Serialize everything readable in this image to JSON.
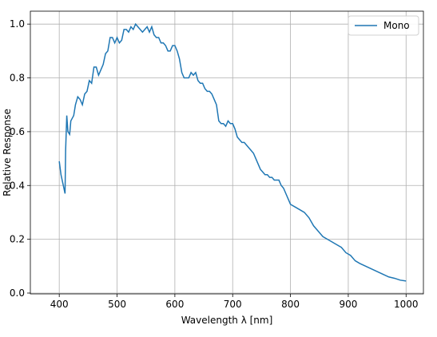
{
  "chart_data": {
    "type": "line",
    "xlabel": "Wavelength λ [nm]",
    "ylabel": "Relative Response",
    "x": [
      400,
      403,
      407,
      410,
      411,
      413,
      415,
      418,
      420,
      425,
      428,
      432,
      436,
      440,
      444,
      448,
      452,
      456,
      460,
      464,
      468,
      472,
      476,
      480,
      484,
      488,
      492,
      496,
      500,
      504,
      508,
      512,
      516,
      520,
      524,
      528,
      532,
      536,
      540,
      544,
      548,
      552,
      556,
      560,
      564,
      568,
      572,
      576,
      580,
      584,
      588,
      592,
      596,
      600,
      604,
      608,
      612,
      616,
      620,
      624,
      628,
      632,
      636,
      640,
      644,
      648,
      652,
      656,
      660,
      664,
      668,
      672,
      676,
      680,
      684,
      688,
      692,
      696,
      700,
      704,
      708,
      712,
      716,
      720,
      724,
      728,
      732,
      736,
      740,
      744,
      748,
      752,
      756,
      760,
      764,
      768,
      772,
      776,
      780,
      784,
      788,
      792,
      796,
      800,
      808,
      816,
      824,
      832,
      840,
      848,
      856,
      864,
      872,
      880,
      888,
      896,
      904,
      912,
      920,
      930,
      940,
      950,
      960,
      970,
      980,
      990,
      1000
    ],
    "series": [
      {
        "name": "Mono",
        "color": "#1f77b4",
        "values": [
          0.49,
          0.44,
          0.4,
          0.37,
          0.53,
          0.66,
          0.6,
          0.59,
          0.64,
          0.66,
          0.7,
          0.73,
          0.72,
          0.7,
          0.74,
          0.75,
          0.79,
          0.78,
          0.84,
          0.84,
          0.81,
          0.83,
          0.85,
          0.89,
          0.9,
          0.95,
          0.95,
          0.93,
          0.95,
          0.93,
          0.94,
          0.98,
          0.98,
          0.97,
          0.99,
          0.98,
          1.0,
          0.99,
          0.98,
          0.97,
          0.98,
          0.99,
          0.97,
          0.99,
          0.96,
          0.95,
          0.95,
          0.93,
          0.93,
          0.92,
          0.9,
          0.9,
          0.92,
          0.92,
          0.9,
          0.87,
          0.82,
          0.8,
          0.8,
          0.8,
          0.82,
          0.81,
          0.82,
          0.79,
          0.78,
          0.78,
          0.76,
          0.75,
          0.75,
          0.74,
          0.72,
          0.7,
          0.64,
          0.63,
          0.63,
          0.62,
          0.64,
          0.63,
          0.63,
          0.61,
          0.58,
          0.57,
          0.56,
          0.56,
          0.55,
          0.54,
          0.53,
          0.52,
          0.5,
          0.48,
          0.46,
          0.45,
          0.44,
          0.44,
          0.43,
          0.43,
          0.42,
          0.42,
          0.42,
          0.4,
          0.39,
          0.37,
          0.35,
          0.33,
          0.32,
          0.31,
          0.3,
          0.28,
          0.25,
          0.23,
          0.21,
          0.2,
          0.19,
          0.18,
          0.17,
          0.15,
          0.14,
          0.12,
          0.11,
          0.1,
          0.09,
          0.08,
          0.07,
          0.06,
          0.055,
          0.048,
          0.045
        ]
      }
    ],
    "xlim": [
      350,
      1030
    ],
    "ylim": [
      -0.003,
      1.048
    ],
    "xticks": [
      400,
      500,
      600,
      700,
      800,
      900,
      1000
    ],
    "yticks": [
      {
        "value": 0,
        "label": "0.0"
      },
      0.2,
      0.4,
      0.6,
      0.8,
      {
        "value": 1,
        "label": "1.0"
      }
    ],
    "grid": true,
    "legend": "upper right"
  }
}
